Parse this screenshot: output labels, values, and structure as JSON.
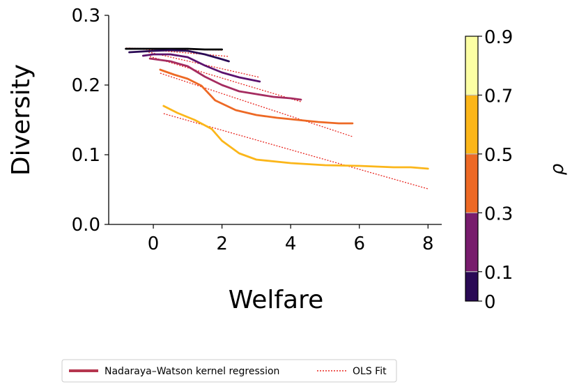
{
  "chart_data": {
    "type": "line",
    "xlabel": "Welfare",
    "ylabel": "Diversity",
    "xlim": [
      -1.3,
      8.4
    ],
    "ylim": [
      0.0,
      0.3
    ],
    "xticks": [
      "0",
      "2",
      "4",
      "6",
      "8"
    ],
    "xtick_values": [
      0,
      2,
      4,
      6,
      8
    ],
    "yticks": [
      "0.0",
      "0.1",
      "0.2",
      "0.3"
    ],
    "ytick_values": [
      0.0,
      0.1,
      0.2,
      0.3
    ],
    "grid": false,
    "colorbar": {
      "label": "ρ",
      "ticks": [
        "0",
        "0.1",
        "0.3",
        "0.5",
        "0.7",
        "0.9"
      ],
      "bands": [
        {
          "from": 0.0,
          "to": 0.1,
          "color": "#2a0a55"
        },
        {
          "from": 0.1,
          "to": 0.3,
          "color": "#781c6d"
        },
        {
          "from": 0.3,
          "to": 0.5,
          "color": "#ed6925"
        },
        {
          "from": 0.5,
          "to": 0.7,
          "color": "#fbb61a"
        },
        {
          "from": 0.7,
          "to": 0.9,
          "color": "#fcffa4"
        }
      ]
    },
    "legend": {
      "placement": "bottom-left",
      "entries": [
        {
          "label": "Nadaraya–Watson kernel regression",
          "style": "solid",
          "color": "#b5364f"
        },
        {
          "label": "OLS Fit",
          "style": "dotted",
          "color": "#e8251e"
        }
      ]
    },
    "series": [
      {
        "color": "#000004",
        "x": [
          -0.8,
          0.0,
          0.5,
          1.0,
          1.5,
          2.0
        ],
        "y": [
          0.252,
          0.252,
          0.252,
          0.252,
          0.251,
          0.251
        ],
        "ols": [
          [
            -0.8,
            0.253
          ],
          [
            2.0,
            0.25
          ]
        ]
      },
      {
        "color": "#2a0a55",
        "x": [
          -0.7,
          0.0,
          0.5,
          1.0,
          1.5,
          2.0,
          2.2
        ],
        "y": [
          0.247,
          0.249,
          0.25,
          0.249,
          0.244,
          0.237,
          0.234
        ],
        "ols": [
          [
            -0.7,
            0.253
          ],
          [
            2.2,
            0.241
          ]
        ]
      },
      {
        "color": "#5c126e",
        "x": [
          -0.3,
          0.0,
          0.5,
          1.0,
          1.5,
          2.0,
          2.5,
          3.1
        ],
        "y": [
          0.242,
          0.244,
          0.244,
          0.24,
          0.228,
          0.218,
          0.211,
          0.205
        ],
        "ols": [
          [
            -0.3,
            0.249
          ],
          [
            3.1,
            0.211
          ]
        ]
      },
      {
        "color": "#a52c60",
        "x": [
          -0.1,
          0.5,
          1.0,
          1.5,
          2.0,
          2.5,
          3.0,
          3.5,
          4.0,
          4.3
        ],
        "y": [
          0.238,
          0.234,
          0.227,
          0.212,
          0.2,
          0.191,
          0.187,
          0.183,
          0.181,
          0.179
        ],
        "ols": [
          [
            -0.1,
            0.241
          ],
          [
            4.3,
            0.176
          ]
        ]
      },
      {
        "color": "#ed6925",
        "x": [
          0.2,
          0.6,
          1.0,
          1.4,
          1.8,
          2.4,
          3.0,
          3.6,
          4.2,
          4.8,
          5.4,
          5.8
        ],
        "y": [
          0.222,
          0.215,
          0.209,
          0.199,
          0.178,
          0.164,
          0.157,
          0.153,
          0.15,
          0.147,
          0.145,
          0.145
        ],
        "ols": [
          [
            0.2,
            0.217
          ],
          [
            5.8,
            0.126
          ]
        ]
      },
      {
        "color": "#fbb61a",
        "x": [
          0.3,
          0.7,
          1.2,
          1.7,
          2.0,
          2.5,
          3.0,
          4.0,
          5.0,
          6.0,
          7.0,
          7.5,
          8.0
        ],
        "y": [
          0.17,
          0.16,
          0.15,
          0.137,
          0.12,
          0.102,
          0.093,
          0.088,
          0.085,
          0.084,
          0.082,
          0.082,
          0.08
        ],
        "ols": [
          [
            0.3,
            0.159
          ],
          [
            8.0,
            0.051
          ]
        ]
      }
    ]
  }
}
